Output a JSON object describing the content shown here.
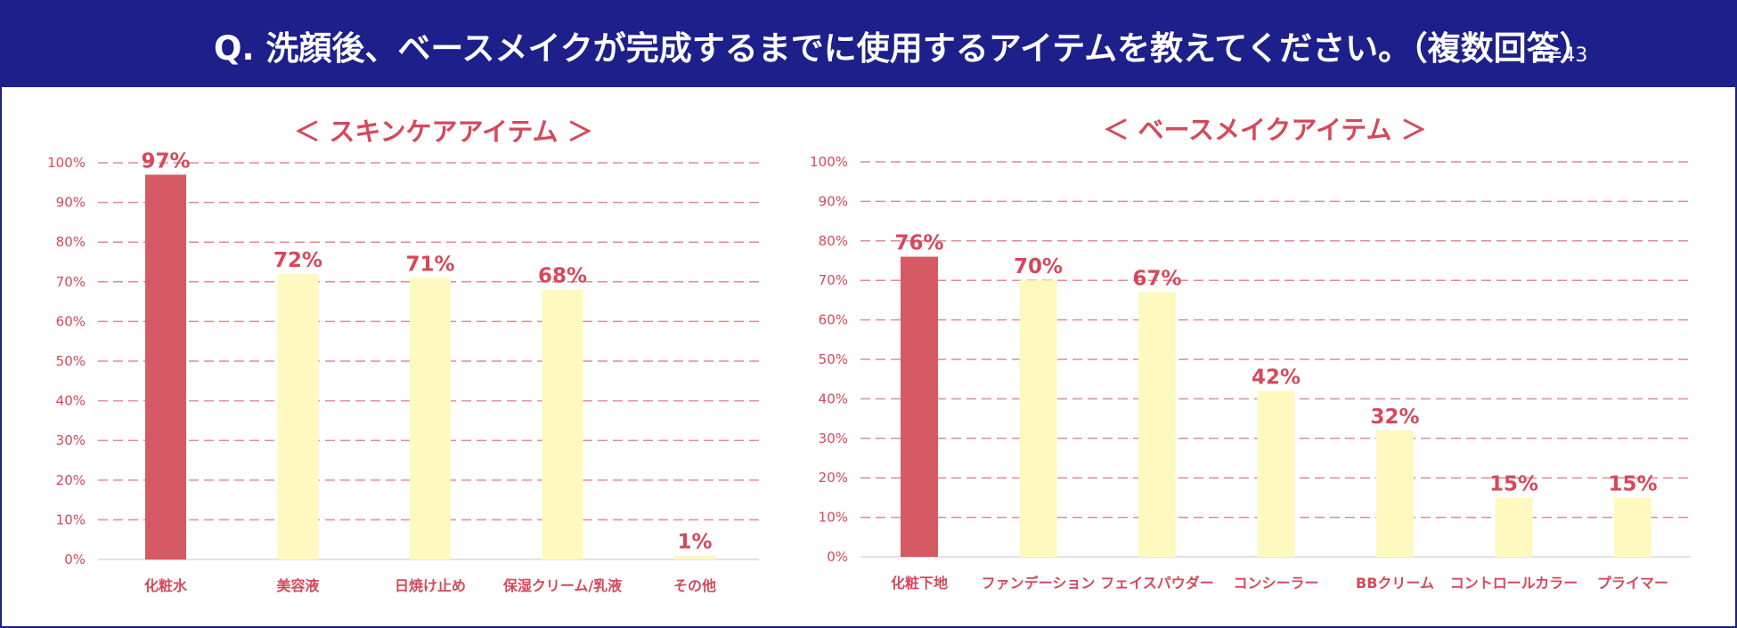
{
  "header": {
    "title": "Q. 洗顔後、ベースメイクが完成するまでに使用するアイテムを教えてください。（複数回答）",
    "sample_size": "n=43",
    "background_color": "#1d1f8a"
  },
  "colors": {
    "highlight_bar": "#d65a63",
    "normal_bar": "#fff9bf",
    "label_text": "#d4495c",
    "grid_line": "#dd8c94"
  },
  "chart_data": [
    {
      "type": "bar",
      "title": "＜ スキンケアアイテム ＞",
      "categories": [
        "化粧水",
        "美容液",
        "日焼け止め",
        "保湿クリーム/乳液",
        "その他"
      ],
      "values": [
        97,
        72,
        71,
        68,
        1
      ],
      "value_labels": [
        "97%",
        "72%",
        "71%",
        "68%",
        "1%"
      ],
      "highlight": [
        true,
        false,
        false,
        false,
        false
      ],
      "ylim": [
        0,
        100
      ],
      "yticks": [
        "0%",
        "10%",
        "20%",
        "30%",
        "40%",
        "50%",
        "60%",
        "70%",
        "80%",
        "90%",
        "100%"
      ],
      "grid": true,
      "xlabel": "",
      "ylabel": ""
    },
    {
      "type": "bar",
      "title": "＜ ベースメイクアイテム ＞",
      "categories": [
        "化粧下地",
        "ファンデーション",
        "フェイスパウダー",
        "コンシーラー",
        "BBクリーム",
        "コントロールカラー",
        "プライマー"
      ],
      "values": [
        76,
        70,
        67,
        42,
        32,
        15,
        15
      ],
      "value_labels": [
        "76%",
        "70%",
        "67%",
        "42%",
        "32%",
        "15%",
        "15%"
      ],
      "highlight": [
        true,
        false,
        false,
        false,
        false,
        false,
        false
      ],
      "ylim": [
        0,
        100
      ],
      "yticks": [
        "0%",
        "10%",
        "20%",
        "30%",
        "40%",
        "50%",
        "60%",
        "70%",
        "80%",
        "90%",
        "100%"
      ],
      "grid": true,
      "xlabel": "",
      "ylabel": ""
    }
  ]
}
